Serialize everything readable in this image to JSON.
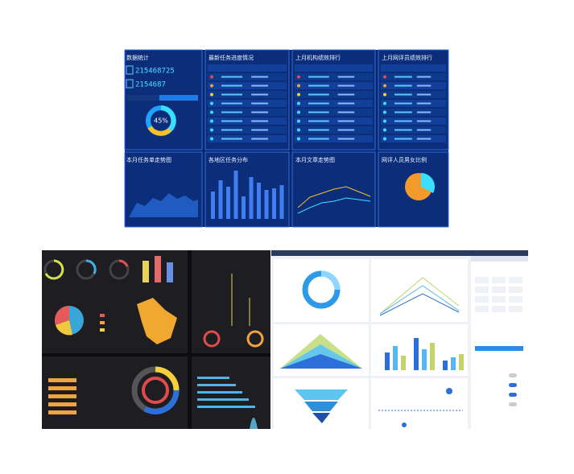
{
  "top_dashboard": {
    "stats_title": "数据统计",
    "total_number": "215468725",
    "today_number": "2154687",
    "donut_label": "45%",
    "panels": [
      "最新任务进度情况",
      "上月机构绩效排行",
      "上月网评员绩效排行"
    ],
    "charts": [
      "本月任务单走势图",
      "各地区任务分布",
      "本月文章走势图",
      "网评人员男女比例"
    ]
  }
}
